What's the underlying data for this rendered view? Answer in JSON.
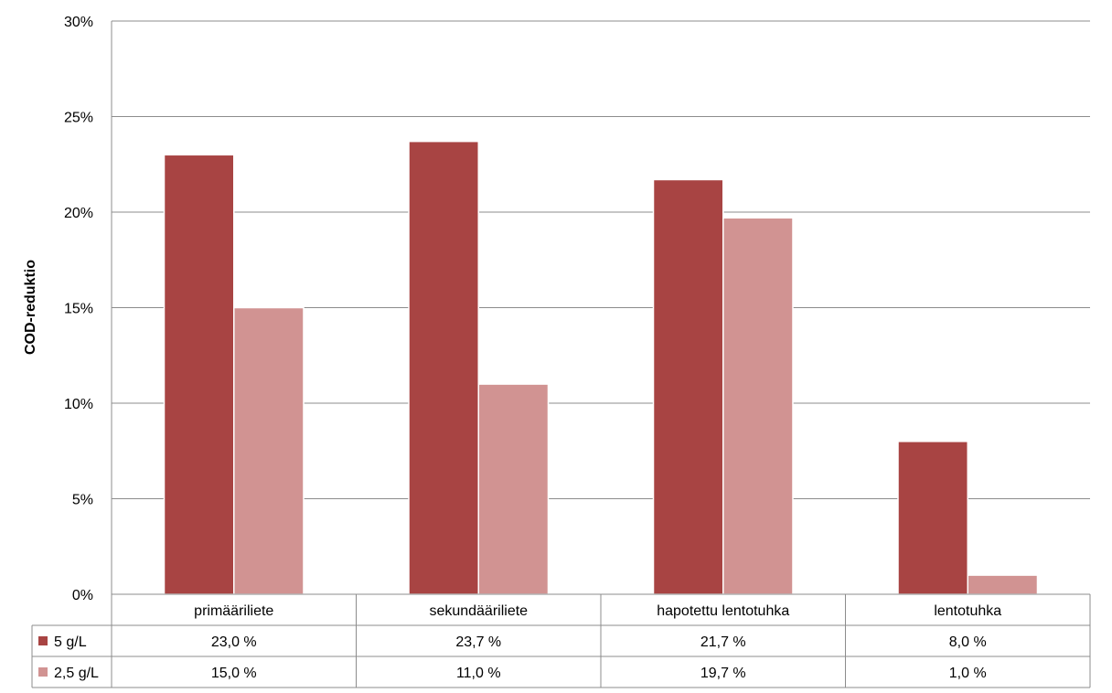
{
  "chart_data": {
    "type": "bar",
    "ylabel": "COD-reduktio",
    "ylim": [
      0,
      30
    ],
    "ytick_step": 5,
    "ytick_suffix": "%",
    "grid": true,
    "categories": [
      "primääriliete",
      "sekundääriliete",
      "hapotettu lentotuhka",
      "lentotuhka"
    ],
    "series": [
      {
        "name": "5 g/L",
        "color": "#a84443",
        "values": [
          23.0,
          23.7,
          21.7,
          8.0
        ],
        "labels": [
          "23,0 %",
          "23,7 %",
          "21,7 %",
          "8,0 %"
        ]
      },
      {
        "name": "2,5 g/L",
        "color": "#d19392",
        "values": [
          15.0,
          11.0,
          19.7,
          1.0
        ],
        "labels": [
          "15,0 %",
          "11,0 %",
          "19,7 %",
          "1,0 %"
        ]
      }
    ],
    "legend": "data-table-left"
  }
}
